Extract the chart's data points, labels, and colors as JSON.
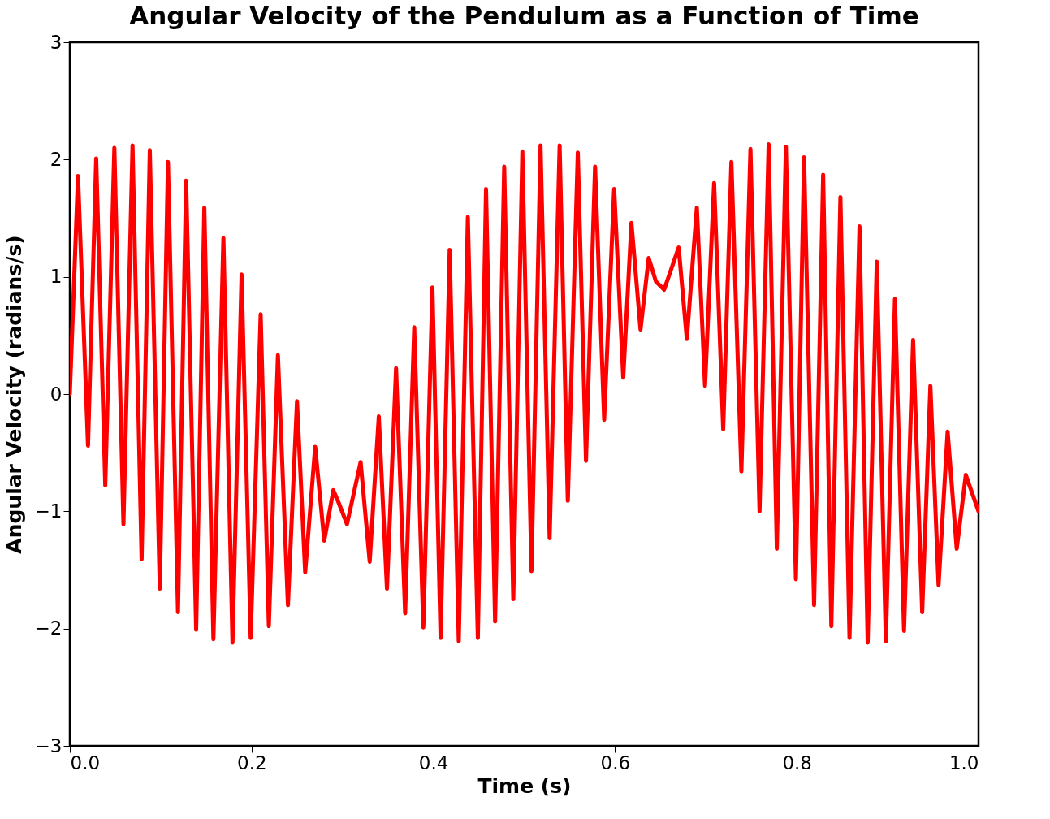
{
  "chart_data": {
    "type": "line",
    "title": "Angular Velocity of the Pendulum as a Function of Time",
    "xlabel": "Time (s)",
    "ylabel": "Angular Velocity (radians/s)",
    "xlim": [
      0,
      1
    ],
    "ylim": [
      -3,
      3
    ],
    "xticks": [
      {
        "value": 0,
        "label": "0.0"
      },
      {
        "value": 0.2,
        "label": "0.2"
      },
      {
        "value": 0.4,
        "label": "0.4"
      },
      {
        "value": 0.6,
        "label": "0.6"
      },
      {
        "value": 0.8,
        "label": "0.8"
      },
      {
        "value": 1,
        "label": "1.0"
      }
    ],
    "yticks": [
      -3,
      -2,
      -1,
      0,
      1,
      2,
      3
    ],
    "grid": false,
    "legend": false,
    "marker": "none",
    "line_style": "solid",
    "series": [
      {
        "color": "#ff0000",
        "x": [
          0,
          0.009,
          0.02,
          0.029,
          0.039,
          0.049,
          0.059,
          0.069,
          0.079,
          0.088,
          0.099,
          0.108,
          0.119,
          0.128,
          0.139,
          0.148,
          0.158,
          0.169,
          0.179,
          0.189,
          0.199,
          0.21,
          0.219,
          0.229,
          0.24,
          0.25,
          0.259,
          0.27,
          0.28,
          0.29,
          0.296,
          0.305,
          0.32,
          0.33,
          0.34,
          0.349,
          0.359,
          0.369,
          0.379,
          0.389,
          0.399,
          0.408,
          0.418,
          0.428,
          0.438,
          0.449,
          0.458,
          0.468,
          0.478,
          0.488,
          0.498,
          0.508,
          0.518,
          0.528,
          0.539,
          0.548,
          0.559,
          0.568,
          0.578,
          0.588,
          0.599,
          0.609,
          0.618,
          0.628,
          0.637,
          0.645,
          0.654,
          0.67,
          0.679,
          0.69,
          0.699,
          0.709,
          0.719,
          0.728,
          0.739,
          0.749,
          0.759,
          0.769,
          0.778,
          0.788,
          0.799,
          0.808,
          0.819,
          0.829,
          0.838,
          0.848,
          0.858,
          0.869,
          0.878,
          0.888,
          0.898,
          0.908,
          0.918,
          0.928,
          0.938,
          0.947,
          0.956,
          0.966,
          0.976,
          0.986,
          1.0
        ],
        "values": [
          0,
          1.86,
          -0.44,
          2.01,
          -0.78,
          2.1,
          -1.11,
          2.12,
          -1.41,
          2.08,
          -1.66,
          1.98,
          -1.86,
          1.82,
          -2.01,
          1.59,
          -2.09,
          1.33,
          -2.12,
          1.02,
          -2.08,
          0.68,
          -1.98,
          0.33,
          -1.8,
          -0.06,
          -1.52,
          -0.45,
          -1.25,
          -0.82,
          -0.93,
          -1.11,
          -0.58,
          -1.43,
          -0.19,
          -1.66,
          0.22,
          -1.87,
          0.57,
          -1.99,
          0.91,
          -2.08,
          1.23,
          -2.11,
          1.51,
          -2.08,
          1.75,
          -1.94,
          1.94,
          -1.75,
          2.07,
          -1.51,
          2.12,
          -1.23,
          2.12,
          -0.91,
          2.06,
          -0.57,
          1.94,
          -0.22,
          1.75,
          0.14,
          1.46,
          0.55,
          1.16,
          0.96,
          0.89,
          1.25,
          0.47,
          1.59,
          0.07,
          1.8,
          -0.3,
          1.98,
          -0.66,
          2.09,
          -1.0,
          2.13,
          -1.32,
          2.11,
          -1.58,
          2.02,
          -1.8,
          1.87,
          -1.98,
          1.68,
          -2.08,
          1.43,
          -2.12,
          1.13,
          -2.11,
          0.81,
          -2.02,
          0.46,
          -1.86,
          0.07,
          -1.63,
          -0.32,
          -1.32,
          -0.69,
          -1.0
        ]
      }
    ]
  }
}
